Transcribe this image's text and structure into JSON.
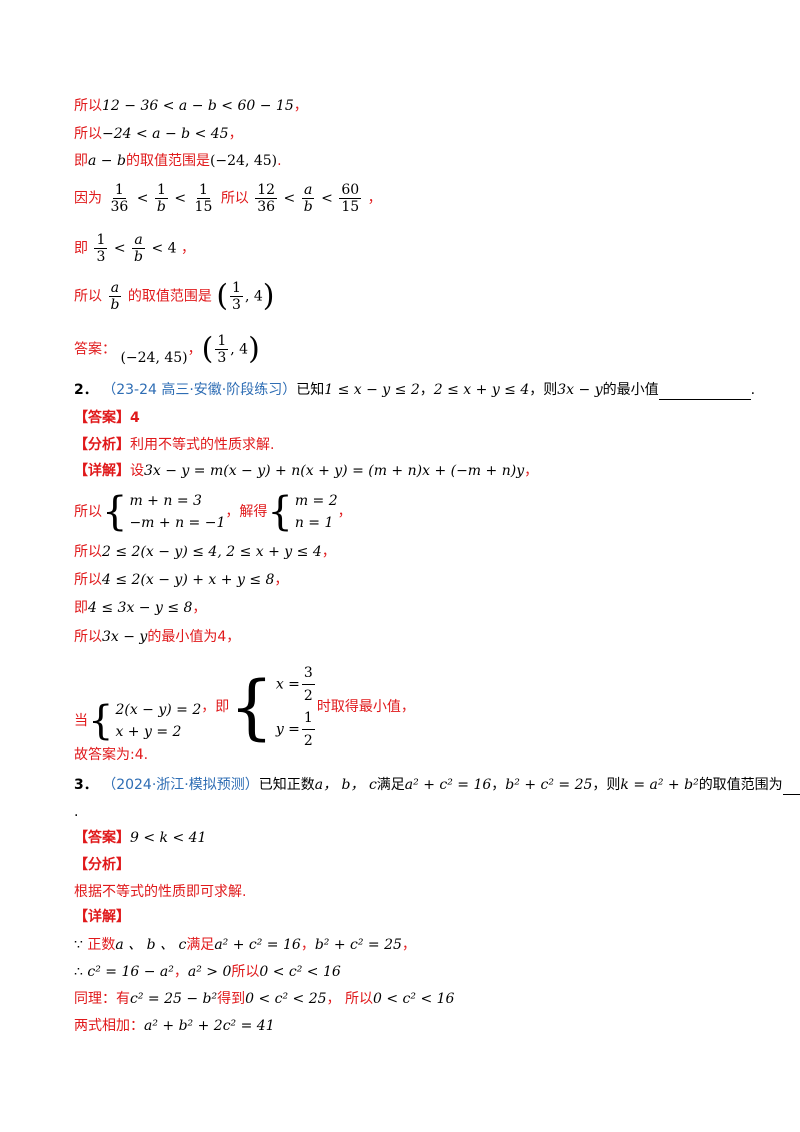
{
  "l01": {
    "a": "所以",
    "b": "12 − 36 < a − b < 60 − 15",
    "c": "，"
  },
  "l02": {
    "a": "所以",
    "b": "−24 < a − b < 45",
    "c": "，"
  },
  "l03": {
    "a": "即",
    "b": "a − b",
    "c": "的取值范围是",
    "d": "(−24, 45)",
    "e": "."
  },
  "l04": {
    "a": "因为",
    "f1n": "1",
    "f1d": "36",
    "lt1": "<",
    "f2n": "1",
    "f2d": "b",
    "lt2": "<",
    "f3n": "1",
    "f3d": "15",
    "b": "所以",
    "f4n": "12",
    "f4d": "36",
    "lt3": "<",
    "f5n": "a",
    "f5d": "b",
    "lt4": "<",
    "f6n": "60",
    "f6d": "15",
    "c": "，"
  },
  "l05": {
    "a": "即",
    "f1n": "1",
    "f1d": "3",
    "lt1": "<",
    "f2n": "a",
    "f2d": "b",
    "rest": "< 4",
    "c": "，"
  },
  "l06": {
    "a": "所以",
    "fn": "a",
    "fd": "b",
    "b": "的取值范围是",
    "lp": "(",
    "f2n": "1",
    "f2d": "3",
    "rest": ", 4",
    "rp": ")"
  },
  "l07": {
    "a": "答案：",
    "b": "(−24, 45)",
    "c": "，",
    "lp": "(",
    "fn": "1",
    "fd": "3",
    "rest": ", 4",
    "rp": ")"
  },
  "q2": {
    "num": "2．",
    "src": "（23-24 高三·安徽·阶段练习）",
    "a": "已知",
    "m1": "1 ≤ x − y ≤ 2",
    "b": "，",
    "m2": "2 ≤ x + y ≤ 4",
    "c": "，则",
    "m3": "3x − y",
    "d": "的最小值",
    "e": "."
  },
  "q2ans": {
    "tag": "【答案】",
    "val": "4"
  },
  "q2ana": {
    "tag": "【分析】",
    "val": "利用不等式的性质求解."
  },
  "q2det": {
    "tag": "【详解】",
    "a": "设",
    "m": "3x − y = m(x − y) + n(x + y) = (m + n)x + (−m + n)y",
    "c": "，"
  },
  "l13": {
    "a": "所以",
    "r1": "m + n = 3",
    "r2": "−m + n = −1",
    "b": "，解得",
    "r3": "m = 2",
    "r4": "n = 1",
    "c": "，"
  },
  "l14": {
    "a": "所以",
    "m": "2 ≤ 2(x − y) ≤ 4, 2 ≤ x + y ≤ 4",
    "c": "，"
  },
  "l15": {
    "a": "所以",
    "m": "4 ≤ 2(x − y) + x + y ≤ 8",
    "c": "，"
  },
  "l16": {
    "a": "即",
    "m": "4 ≤ 3x − y ≤ 8",
    "c": "，"
  },
  "l17": {
    "a": "所以",
    "m": "3x − y",
    "b": "的最小值为",
    "v": "4",
    "c": "，"
  },
  "l18": {
    "a": "当",
    "r1": "2(x − y) = 2",
    "r2": "x + y = 2",
    "b": "，即",
    "x": "x =",
    "xn": "3",
    "xd": "2",
    "y": "y =",
    "yn": "1",
    "yd": "2",
    "c": "时取得最小值，"
  },
  "l19": {
    "a": "故答案为:4."
  },
  "q3": {
    "num": "3．",
    "src": "（2024·浙江·模拟预测）",
    "a": "已知正数",
    "v": "a， b， c",
    "b": "满足",
    "m1": "a² + c² = 16",
    "c": "，",
    "m2": "b² + c² = 25",
    "d": "，则",
    "m3": "k = a² + b²",
    "e": "的取值范围为",
    "dot": "."
  },
  "q3ans": {
    "tag": "【答案】",
    "m": "9 < k < 41"
  },
  "q3ana": {
    "tag": "【分析】"
  },
  "q3ana2": {
    "val": "根据不等式的性质即可求解."
  },
  "q3det": {
    "tag": "【详解】"
  },
  "l25": {
    "a": "∵ ",
    "b": "正数",
    "v": "a 、 b 、 c",
    "c": "满足",
    "m1": "a² + c² = 16",
    "d": "，",
    "m2": "b² + c² = 25",
    "e": "，"
  },
  "l26": {
    "a": "∴ ",
    "m1": "c² = 16 − a²",
    "b": "，",
    "m2": "a² > 0",
    "c": "所以",
    "m3": "0 < c² < 16"
  },
  "l27": {
    "a": "同理：有",
    "m1": "c² = 25 − b²",
    "b": "得到",
    "m2": "0 < c² < 25",
    "c": "， 所以",
    "m3": "0 < c² < 16"
  },
  "l28": {
    "a": "两式相加：",
    "m": "a² + b² + 2c² = 41"
  }
}
